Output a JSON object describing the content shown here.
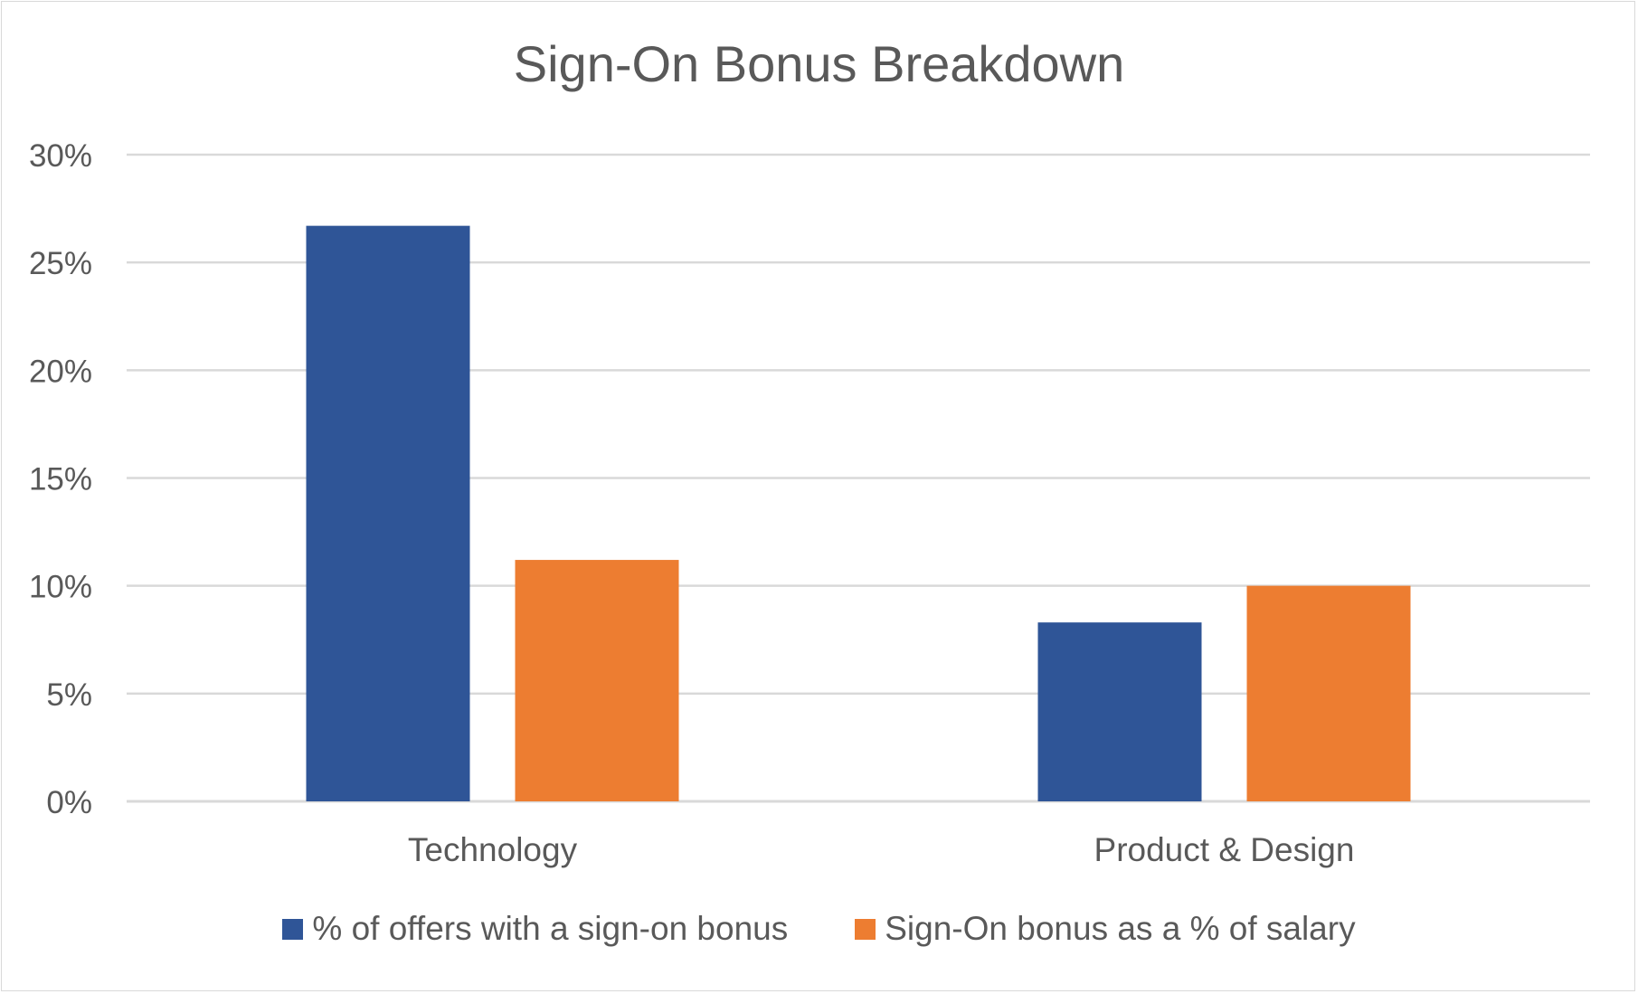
{
  "chart_data": {
    "type": "bar",
    "title": "Sign-On Bonus Breakdown",
    "categories": [
      "Technology",
      "Product & Design"
    ],
    "series": [
      {
        "name": "% of offers with a sign-on bonus",
        "values": [
          26.7,
          8.3
        ],
        "color": "#2f5597"
      },
      {
        "name": "Sign-On bonus as a % of salary",
        "values": [
          11.2,
          10.0
        ],
        "color": "#ed7d31"
      }
    ],
    "ylim": [
      0,
      30
    ],
    "yticks": [
      0,
      5,
      10,
      15,
      20,
      25,
      30
    ],
    "ytick_labels": [
      "0%",
      "5%",
      "10%",
      "15%",
      "20%",
      "25%",
      "30%"
    ],
    "grid": true,
    "legend_position": "bottom"
  }
}
